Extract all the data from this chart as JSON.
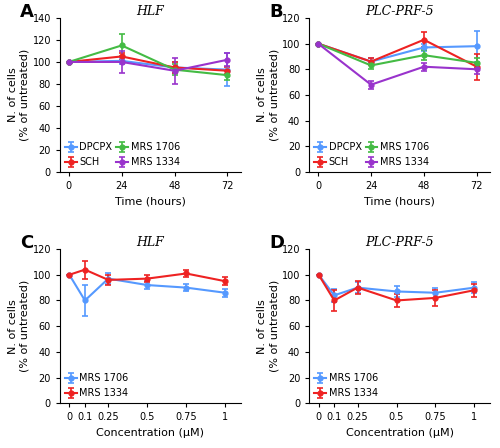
{
  "panel_A": {
    "title": "HLF",
    "xlabel": "Time (hours)",
    "ylabel": "N. of cells\n(% of untreated)",
    "x": [
      0,
      24,
      48,
      72
    ],
    "xlim": [
      -4,
      78
    ],
    "ylim": [
      0,
      140
    ],
    "yticks": [
      0,
      20,
      40,
      60,
      80,
      100,
      120,
      140
    ],
    "xticks": [
      0,
      24,
      48,
      72
    ],
    "series": {
      "DPCPX": {
        "y": [
          100,
          101,
          95,
          93
        ],
        "yerr": [
          0,
          3,
          5,
          15
        ],
        "color": "#5599ff",
        "marker": "o"
      },
      "SCH": {
        "y": [
          100,
          105,
          95,
          92
        ],
        "yerr": [
          0,
          3,
          5,
          3
        ],
        "color": "#ee2222",
        "marker": "o"
      },
      "MRS 1706": {
        "y": [
          100,
          115,
          93,
          88
        ],
        "yerr": [
          0,
          10,
          5,
          4
        ],
        "color": "#44bb44",
        "marker": "o"
      },
      "MRS 1334": {
        "y": [
          100,
          100,
          92,
          102
        ],
        "yerr": [
          0,
          10,
          12,
          6
        ],
        "color": "#9933cc",
        "marker": "o"
      }
    }
  },
  "panel_B": {
    "title": "PLC-PRF-5",
    "xlabel": "Time (hours)",
    "ylabel": "N. of cells\n(% of untreated)",
    "x": [
      0,
      24,
      48,
      72
    ],
    "xlim": [
      -4,
      78
    ],
    "ylim": [
      0,
      120
    ],
    "yticks": [
      0,
      20,
      40,
      60,
      80,
      100,
      120
    ],
    "xticks": [
      0,
      24,
      48,
      72
    ],
    "series": {
      "DPCPX": {
        "y": [
          100,
          86,
          97,
          98
        ],
        "yerr": [
          0,
          3,
          3,
          12
        ],
        "color": "#5599ff",
        "marker": "o"
      },
      "SCH": {
        "y": [
          100,
          86,
          103,
          82
        ],
        "yerr": [
          0,
          3,
          6,
          10
        ],
        "color": "#ee2222",
        "marker": "o"
      },
      "MRS 1706": {
        "y": [
          100,
          83,
          91,
          85
        ],
        "yerr": [
          0,
          3,
          4,
          4
        ],
        "color": "#44bb44",
        "marker": "o"
      },
      "MRS 1334": {
        "y": [
          100,
          68,
          82,
          80
        ],
        "yerr": [
          0,
          3,
          3,
          4
        ],
        "color": "#9933cc",
        "marker": "o"
      }
    }
  },
  "panel_C": {
    "title": "HLF",
    "xlabel": "Concentration (μM)",
    "ylabel": "N. of cells\n(% of untreated)",
    "x": [
      0,
      0.1,
      0.25,
      0.5,
      0.75,
      1.0
    ],
    "xlim": [
      -0.06,
      1.1
    ],
    "ylim": [
      0,
      120
    ],
    "yticks": [
      0,
      20,
      40,
      60,
      80,
      100,
      120
    ],
    "xticks": [
      0,
      0.1,
      0.25,
      0.5,
      0.75,
      1.0
    ],
    "xticklabels": [
      "0",
      "0.1",
      "0.25",
      "0.5",
      "0.75",
      "1"
    ],
    "series": {
      "MRS 1706": {
        "y": [
          100,
          80,
          97,
          92,
          90,
          86
        ],
        "yerr": [
          0,
          12,
          4,
          3,
          3,
          3
        ],
        "color": "#5599ff",
        "marker": "o"
      },
      "MRS 1334": {
        "y": [
          100,
          104,
          96,
          97,
          101,
          95
        ],
        "yerr": [
          0,
          7,
          4,
          3,
          3,
          3
        ],
        "color": "#ee2222",
        "marker": "o"
      }
    }
  },
  "panel_D": {
    "title": "PLC-PRF-5",
    "xlabel": "Concentration (μM)",
    "ylabel": "N. of cells\n(% of untreated)",
    "x": [
      0,
      0.1,
      0.25,
      0.5,
      0.75,
      1.0
    ],
    "xlim": [
      -0.06,
      1.1
    ],
    "ylim": [
      0,
      120
    ],
    "yticks": [
      0,
      20,
      40,
      60,
      80,
      100,
      120
    ],
    "xticks": [
      0,
      0.1,
      0.25,
      0.5,
      0.75,
      1.0
    ],
    "xticklabels": [
      "0",
      "0.1",
      "0.25",
      "0.5",
      "0.75",
      "1"
    ],
    "series": {
      "MRS 1706": {
        "y": [
          100,
          84,
          90,
          87,
          86,
          90
        ],
        "yerr": [
          0,
          5,
          4,
          4,
          4,
          4
        ],
        "color": "#5599ff",
        "marker": "o"
      },
      "MRS 1334": {
        "y": [
          100,
          80,
          90,
          80,
          82,
          88
        ],
        "yerr": [
          0,
          8,
          5,
          5,
          6,
          5
        ],
        "color": "#ee2222",
        "marker": "o"
      }
    }
  },
  "bg_color": "#ffffff",
  "legend_fontsize": 7,
  "axis_fontsize": 8,
  "title_fontsize": 9,
  "tick_fontsize": 7,
  "linewidth": 1.5,
  "markersize": 3.5,
  "elinewidth": 1.2,
  "capsize": 2
}
